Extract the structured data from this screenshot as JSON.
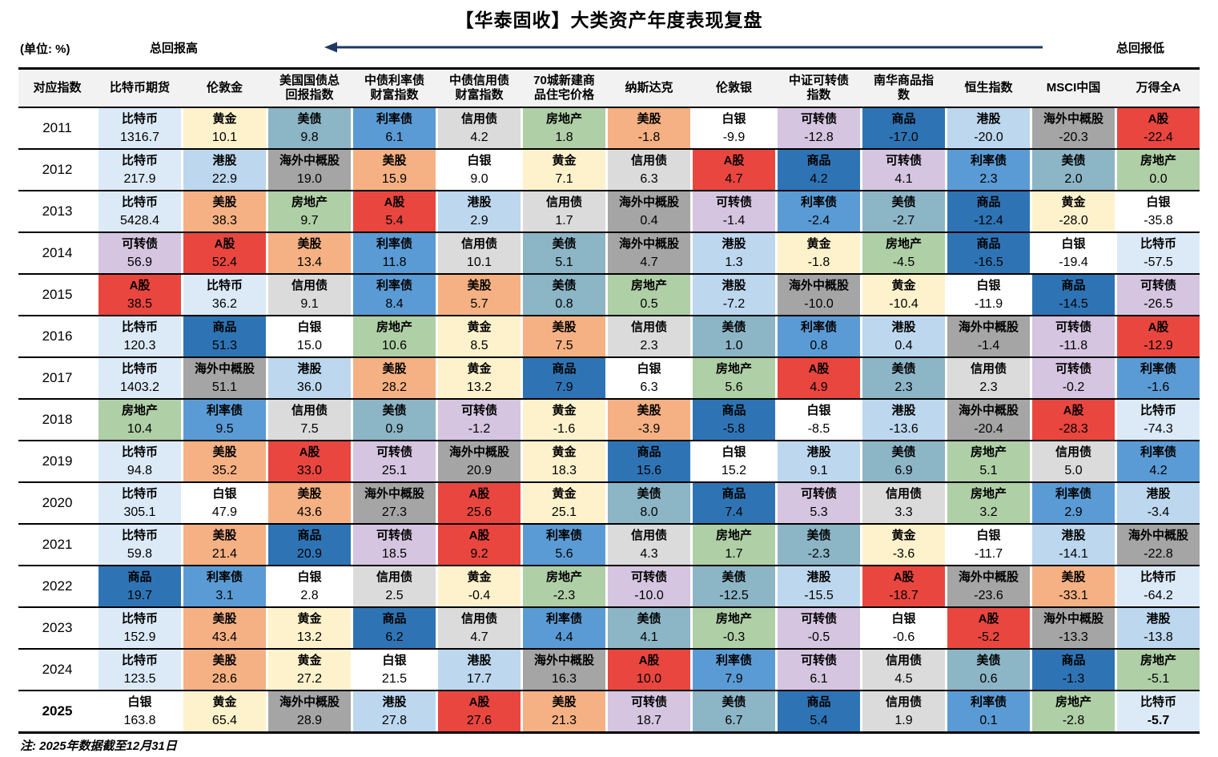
{
  "title": "【华泰固收】大类资产年度表现复盘",
  "unit_label": "(单位: %)",
  "legend": {
    "high": "总回报高",
    "low": "总回报低"
  },
  "note": "注: 2025年数据截至12月31日",
  "arrow_color": "#1F3864",
  "corner_label": "对应指数",
  "asset_colors": {
    "比特币": "#DCEAF7",
    "黄金": "#FEF2CC",
    "美债": "#8CB5C6",
    "利率债": "#5B9BD5",
    "信用债": "#DBDBDB",
    "房地产": "#AFCFA6",
    "美股": "#F5B183",
    "白银": "#FFFFFF",
    "可转债": "#D5C5E0",
    "商品": "#2E74B5",
    "港股": "#BDD7EE",
    "海外中概股": "#A5A5A5",
    "A股": "#E9463F"
  },
  "chart_data": {
    "type": "table",
    "title": "【华泰固收】大类资产年度表现复盘",
    "unit": "%",
    "columns": [
      "比特币期货",
      "伦敦金",
      "美国国债总回报指数",
      "中债利率债财富指数",
      "中债信用债财富指数",
      "70城新建商品住宅价格",
      "纳斯达克",
      "伦敦银",
      "中证可转债指数",
      "南华商品指数",
      "恒生指数",
      "MSCI中国",
      "万得全A"
    ],
    "rows": [
      {
        "year": "2011",
        "cells": [
          {
            "asset": "比特币",
            "value": "1316.7"
          },
          {
            "asset": "黄金",
            "value": "10.1"
          },
          {
            "asset": "美债",
            "value": "9.8"
          },
          {
            "asset": "利率债",
            "value": "6.1"
          },
          {
            "asset": "信用债",
            "value": "4.2"
          },
          {
            "asset": "房地产",
            "value": "1.8"
          },
          {
            "asset": "美股",
            "value": "-1.8"
          },
          {
            "asset": "白银",
            "value": "-9.9"
          },
          {
            "asset": "可转债",
            "value": "-12.8"
          },
          {
            "asset": "商品",
            "value": "-17.0"
          },
          {
            "asset": "港股",
            "value": "-20.0"
          },
          {
            "asset": "海外中概股",
            "value": "-20.3"
          },
          {
            "asset": "A股",
            "value": "-22.4"
          }
        ]
      },
      {
        "year": "2012",
        "cells": [
          {
            "asset": "比特币",
            "value": "217.9"
          },
          {
            "asset": "港股",
            "value": "22.9"
          },
          {
            "asset": "海外中概股",
            "value": "19.0"
          },
          {
            "asset": "美股",
            "value": "15.9"
          },
          {
            "asset": "白银",
            "value": "9.0"
          },
          {
            "asset": "黄金",
            "value": "7.1"
          },
          {
            "asset": "信用债",
            "value": "6.3"
          },
          {
            "asset": "A股",
            "value": "4.7"
          },
          {
            "asset": "商品",
            "value": "4.2"
          },
          {
            "asset": "可转债",
            "value": "4.1"
          },
          {
            "asset": "利率债",
            "value": "2.3"
          },
          {
            "asset": "美债",
            "value": "2.0"
          },
          {
            "asset": "房地产",
            "value": "0.0"
          }
        ]
      },
      {
        "year": "2013",
        "cells": [
          {
            "asset": "比特币",
            "value": "5428.4"
          },
          {
            "asset": "美股",
            "value": "38.3"
          },
          {
            "asset": "房地产",
            "value": "9.7"
          },
          {
            "asset": "A股",
            "value": "5.4"
          },
          {
            "asset": "港股",
            "value": "2.9"
          },
          {
            "asset": "信用债",
            "value": "1.7"
          },
          {
            "asset": "海外中概股",
            "value": "0.4"
          },
          {
            "asset": "可转债",
            "value": "-1.4"
          },
          {
            "asset": "利率债",
            "value": "-2.4"
          },
          {
            "asset": "美债",
            "value": "-2.7"
          },
          {
            "asset": "商品",
            "value": "-12.4"
          },
          {
            "asset": "黄金",
            "value": "-28.0"
          },
          {
            "asset": "白银",
            "value": "-35.8"
          }
        ]
      },
      {
        "year": "2014",
        "cells": [
          {
            "asset": "可转债",
            "value": "56.9"
          },
          {
            "asset": "A股",
            "value": "52.4"
          },
          {
            "asset": "美股",
            "value": "13.4"
          },
          {
            "asset": "利率债",
            "value": "11.8"
          },
          {
            "asset": "信用债",
            "value": "10.1"
          },
          {
            "asset": "美债",
            "value": "5.1"
          },
          {
            "asset": "海外中概股",
            "value": "4.7"
          },
          {
            "asset": "港股",
            "value": "1.3"
          },
          {
            "asset": "黄金",
            "value": "-1.8"
          },
          {
            "asset": "房地产",
            "value": "-4.5"
          },
          {
            "asset": "商品",
            "value": "-16.5"
          },
          {
            "asset": "白银",
            "value": "-19.4"
          },
          {
            "asset": "比特币",
            "value": "-57.5"
          }
        ]
      },
      {
        "year": "2015",
        "cells": [
          {
            "asset": "A股",
            "value": "38.5"
          },
          {
            "asset": "比特币",
            "value": "36.2"
          },
          {
            "asset": "信用债",
            "value": "9.1"
          },
          {
            "asset": "利率债",
            "value": "8.4"
          },
          {
            "asset": "美股",
            "value": "5.7"
          },
          {
            "asset": "美债",
            "value": "0.8"
          },
          {
            "asset": "房地产",
            "value": "0.5"
          },
          {
            "asset": "港股",
            "value": "-7.2"
          },
          {
            "asset": "海外中概股",
            "value": "-10.0"
          },
          {
            "asset": "黄金",
            "value": "-10.4"
          },
          {
            "asset": "白银",
            "value": "-11.9"
          },
          {
            "asset": "商品",
            "value": "-14.5"
          },
          {
            "asset": "可转债",
            "value": "-26.5"
          }
        ]
      },
      {
        "year": "2016",
        "cells": [
          {
            "asset": "比特币",
            "value": "120.3"
          },
          {
            "asset": "商品",
            "value": "51.3"
          },
          {
            "asset": "白银",
            "value": "15.0"
          },
          {
            "asset": "房地产",
            "value": "10.6"
          },
          {
            "asset": "黄金",
            "value": "8.5"
          },
          {
            "asset": "美股",
            "value": "7.5"
          },
          {
            "asset": "信用债",
            "value": "2.3"
          },
          {
            "asset": "美债",
            "value": "1.0"
          },
          {
            "asset": "利率债",
            "value": "0.8"
          },
          {
            "asset": "港股",
            "value": "0.4"
          },
          {
            "asset": "海外中概股",
            "value": "-1.4"
          },
          {
            "asset": "可转债",
            "value": "-11.8"
          },
          {
            "asset": "A股",
            "value": "-12.9"
          }
        ]
      },
      {
        "year": "2017",
        "cells": [
          {
            "asset": "比特币",
            "value": "1403.2"
          },
          {
            "asset": "海外中概股",
            "value": "51.1"
          },
          {
            "asset": "港股",
            "value": "36.0"
          },
          {
            "asset": "美股",
            "value": "28.2"
          },
          {
            "asset": "黄金",
            "value": "13.2"
          },
          {
            "asset": "商品",
            "value": "7.9"
          },
          {
            "asset": "白银",
            "value": "6.3"
          },
          {
            "asset": "房地产",
            "value": "5.6"
          },
          {
            "asset": "A股",
            "value": "4.9"
          },
          {
            "asset": "美债",
            "value": "2.3"
          },
          {
            "asset": "信用债",
            "value": "2.3"
          },
          {
            "asset": "可转债",
            "value": "-0.2"
          },
          {
            "asset": "利率债",
            "value": "-1.6"
          }
        ]
      },
      {
        "year": "2018",
        "cells": [
          {
            "asset": "房地产",
            "value": "10.4"
          },
          {
            "asset": "利率债",
            "value": "9.5"
          },
          {
            "asset": "信用债",
            "value": "7.5"
          },
          {
            "asset": "美债",
            "value": "0.9"
          },
          {
            "asset": "可转债",
            "value": "-1.2"
          },
          {
            "asset": "黄金",
            "value": "-1.6"
          },
          {
            "asset": "美股",
            "value": "-3.9"
          },
          {
            "asset": "商品",
            "value": "-5.8"
          },
          {
            "asset": "白银",
            "value": "-8.5"
          },
          {
            "asset": "港股",
            "value": "-13.6"
          },
          {
            "asset": "海外中概股",
            "value": "-20.4"
          },
          {
            "asset": "A股",
            "value": "-28.3"
          },
          {
            "asset": "比特币",
            "value": "-74.3"
          }
        ]
      },
      {
        "year": "2019",
        "cells": [
          {
            "asset": "比特币",
            "value": "94.8"
          },
          {
            "asset": "美股",
            "value": "35.2"
          },
          {
            "asset": "A股",
            "value": "33.0"
          },
          {
            "asset": "可转债",
            "value": "25.1"
          },
          {
            "asset": "海外中概股",
            "value": "20.9"
          },
          {
            "asset": "黄金",
            "value": "18.3"
          },
          {
            "asset": "商品",
            "value": "15.6"
          },
          {
            "asset": "白银",
            "value": "15.2"
          },
          {
            "asset": "港股",
            "value": "9.1"
          },
          {
            "asset": "美债",
            "value": "6.9"
          },
          {
            "asset": "房地产",
            "value": "5.1"
          },
          {
            "asset": "信用债",
            "value": "5.0"
          },
          {
            "asset": "利率债",
            "value": "4.2"
          }
        ]
      },
      {
        "year": "2020",
        "cells": [
          {
            "asset": "比特币",
            "value": "305.1"
          },
          {
            "asset": "白银",
            "value": "47.9"
          },
          {
            "asset": "美股",
            "value": "43.6"
          },
          {
            "asset": "海外中概股",
            "value": "27.3"
          },
          {
            "asset": "A股",
            "value": "25.6"
          },
          {
            "asset": "黄金",
            "value": "25.1"
          },
          {
            "asset": "美债",
            "value": "8.0"
          },
          {
            "asset": "商品",
            "value": "7.4"
          },
          {
            "asset": "可转债",
            "value": "5.3"
          },
          {
            "asset": "信用债",
            "value": "3.3"
          },
          {
            "asset": "房地产",
            "value": "3.2"
          },
          {
            "asset": "利率债",
            "value": "2.9"
          },
          {
            "asset": "港股",
            "value": "-3.4"
          }
        ]
      },
      {
        "year": "2021",
        "cells": [
          {
            "asset": "比特币",
            "value": "59.8"
          },
          {
            "asset": "美股",
            "value": "21.4"
          },
          {
            "asset": "商品",
            "value": "20.9"
          },
          {
            "asset": "可转债",
            "value": "18.5"
          },
          {
            "asset": "A股",
            "value": "9.2"
          },
          {
            "asset": "利率债",
            "value": "5.6"
          },
          {
            "asset": "信用债",
            "value": "4.3"
          },
          {
            "asset": "房地产",
            "value": "1.7"
          },
          {
            "asset": "美债",
            "value": "-2.3"
          },
          {
            "asset": "黄金",
            "value": "-3.6"
          },
          {
            "asset": "白银",
            "value": "-11.7"
          },
          {
            "asset": "港股",
            "value": "-14.1"
          },
          {
            "asset": "海外中概股",
            "value": "-22.8"
          }
        ]
      },
      {
        "year": "2022",
        "cells": [
          {
            "asset": "商品",
            "value": "19.7"
          },
          {
            "asset": "利率债",
            "value": "3.1"
          },
          {
            "asset": "白银",
            "value": "2.8"
          },
          {
            "asset": "信用债",
            "value": "2.5"
          },
          {
            "asset": "黄金",
            "value": "-0.4"
          },
          {
            "asset": "房地产",
            "value": "-2.3"
          },
          {
            "asset": "可转债",
            "value": "-10.0"
          },
          {
            "asset": "美债",
            "value": "-12.5"
          },
          {
            "asset": "港股",
            "value": "-15.5"
          },
          {
            "asset": "A股",
            "value": "-18.7"
          },
          {
            "asset": "海外中概股",
            "value": "-23.6"
          },
          {
            "asset": "美股",
            "value": "-33.1"
          },
          {
            "asset": "比特币",
            "value": "-64.2"
          }
        ]
      },
      {
        "year": "2023",
        "cells": [
          {
            "asset": "比特币",
            "value": "152.9"
          },
          {
            "asset": "美股",
            "value": "43.4"
          },
          {
            "asset": "黄金",
            "value": "13.2"
          },
          {
            "asset": "商品",
            "value": "6.2"
          },
          {
            "asset": "信用债",
            "value": "4.7"
          },
          {
            "asset": "利率债",
            "value": "4.4"
          },
          {
            "asset": "美债",
            "value": "4.1"
          },
          {
            "asset": "房地产",
            "value": "-0.3"
          },
          {
            "asset": "可转债",
            "value": "-0.5"
          },
          {
            "asset": "白银",
            "value": "-0.6"
          },
          {
            "asset": "A股",
            "value": "-5.2"
          },
          {
            "asset": "海外中概股",
            "value": "-13.3"
          },
          {
            "asset": "港股",
            "value": "-13.8"
          }
        ]
      },
      {
        "year": "2024",
        "cells": [
          {
            "asset": "比特币",
            "value": "123.5"
          },
          {
            "asset": "美股",
            "value": "28.6"
          },
          {
            "asset": "黄金",
            "value": "27.2"
          },
          {
            "asset": "白银",
            "value": "21.5"
          },
          {
            "asset": "港股",
            "value": "17.7"
          },
          {
            "asset": "海外中概股",
            "value": "16.3"
          },
          {
            "asset": "A股",
            "value": "10.0"
          },
          {
            "asset": "利率债",
            "value": "7.9"
          },
          {
            "asset": "可转债",
            "value": "6.1"
          },
          {
            "asset": "信用债",
            "value": "4.5"
          },
          {
            "asset": "美债",
            "value": "0.6"
          },
          {
            "asset": "商品",
            "value": "-1.3"
          },
          {
            "asset": "房地产",
            "value": "-5.1"
          }
        ]
      },
      {
        "year": "2025",
        "bold": true,
        "cells": [
          {
            "asset": "白银",
            "value": "163.8"
          },
          {
            "asset": "黄金",
            "value": "65.4"
          },
          {
            "asset": "海外中概股",
            "value": "28.9"
          },
          {
            "asset": "港股",
            "value": "27.8"
          },
          {
            "asset": "A股",
            "value": "27.6"
          },
          {
            "asset": "美股",
            "value": "21.3"
          },
          {
            "asset": "可转债",
            "value": "18.7"
          },
          {
            "asset": "美债",
            "value": "6.7"
          },
          {
            "asset": "商品",
            "value": "5.4"
          },
          {
            "asset": "信用债",
            "value": "1.9"
          },
          {
            "asset": "利率债",
            "value": "0.1"
          },
          {
            "asset": "房地产",
            "value": "-2.8"
          },
          {
            "asset": "比特币",
            "value": "-5.7",
            "bold": true
          }
        ]
      }
    ]
  }
}
